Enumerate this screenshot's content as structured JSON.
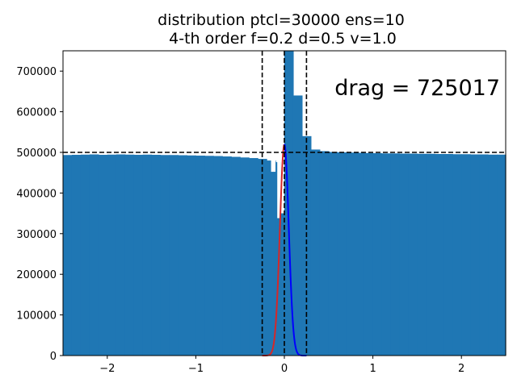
{
  "chart_data": {
    "type": "bar",
    "title_line1": "distribution ptcl=30000 ens=10",
    "title_line2": "4-th order f=0.2 d=0.5 v=1.0",
    "annotation": "drag = 725017",
    "xlim": [
      -2.5,
      2.5
    ],
    "ylim": [
      0,
      750000
    ],
    "x_ticks": [
      -2,
      -1,
      0,
      1,
      2
    ],
    "x_tick_labels": [
      "−2",
      "−1",
      "0",
      "1",
      "2"
    ],
    "y_ticks": [
      0,
      100000,
      200000,
      300000,
      400000,
      500000,
      600000,
      700000
    ],
    "y_tick_labels": [
      "0",
      "100000",
      "200000",
      "300000",
      "400000",
      "500000",
      "600000",
      "700000"
    ],
    "bar_color": "#1f77b4",
    "bin_width": 0.1,
    "bin_left_edges": [
      -2.5,
      -2.4,
      -2.3,
      -2.2,
      -2.1,
      -2.0,
      -1.9,
      -1.8,
      -1.7,
      -1.6,
      -1.5,
      -1.4,
      -1.3,
      -1.2,
      -1.1,
      -1.0,
      -0.9,
      -0.8,
      -0.7,
      -0.6,
      -0.5,
      -0.4,
      -0.3,
      -0.2,
      -0.1,
      0.0,
      0.1,
      0.2,
      0.3,
      0.4,
      0.5,
      0.6,
      0.7,
      0.8,
      0.9,
      1.0,
      1.1,
      1.2,
      1.3,
      1.4,
      1.5,
      1.6,
      1.7,
      1.8,
      1.9,
      2.0,
      2.1,
      2.2,
      2.3,
      2.4
    ],
    "values": [
      493500,
      494000,
      494500,
      495000,
      494000,
      494500,
      495000,
      494500,
      494000,
      494500,
      494000,
      493500,
      493500,
      493000,
      492500,
      492000,
      491500,
      491000,
      490000,
      489000,
      487500,
      486000,
      484000,
      480000,
      476000,
      750000,
      640000,
      540000,
      507000,
      503000,
      501000,
      500000,
      499500,
      499000,
      498500,
      498000,
      497500,
      497500,
      497000,
      497000,
      496500,
      496500,
      496000,
      496000,
      495500,
      495500,
      495000,
      495000,
      494500,
      494500
    ],
    "fine_bins": [
      {
        "x": -0.15,
        "w": 0.05,
        "value": 452000
      },
      {
        "x": -0.08,
        "w": 0.04,
        "value": 338000
      },
      {
        "x": -0.04,
        "w": 0.04,
        "value": 350000
      }
    ],
    "hlines": [
      {
        "y": 500000,
        "style": "dashed",
        "color": "#000000"
      }
    ],
    "vlines": [
      {
        "x": -0.25,
        "style": "dashed",
        "color": "#000000"
      },
      {
        "x": 0.0,
        "style": "dashed",
        "color": "#000000"
      },
      {
        "x": 0.25,
        "style": "dashed",
        "color": "#000000"
      }
    ],
    "curves": [
      {
        "color": "#d62728",
        "side": "left",
        "peak": 520000,
        "sigma": 0.05
      },
      {
        "color": "#0000ff",
        "side": "right",
        "peak": 520000,
        "sigma": 0.05
      }
    ],
    "grid": false,
    "legend": "none"
  }
}
